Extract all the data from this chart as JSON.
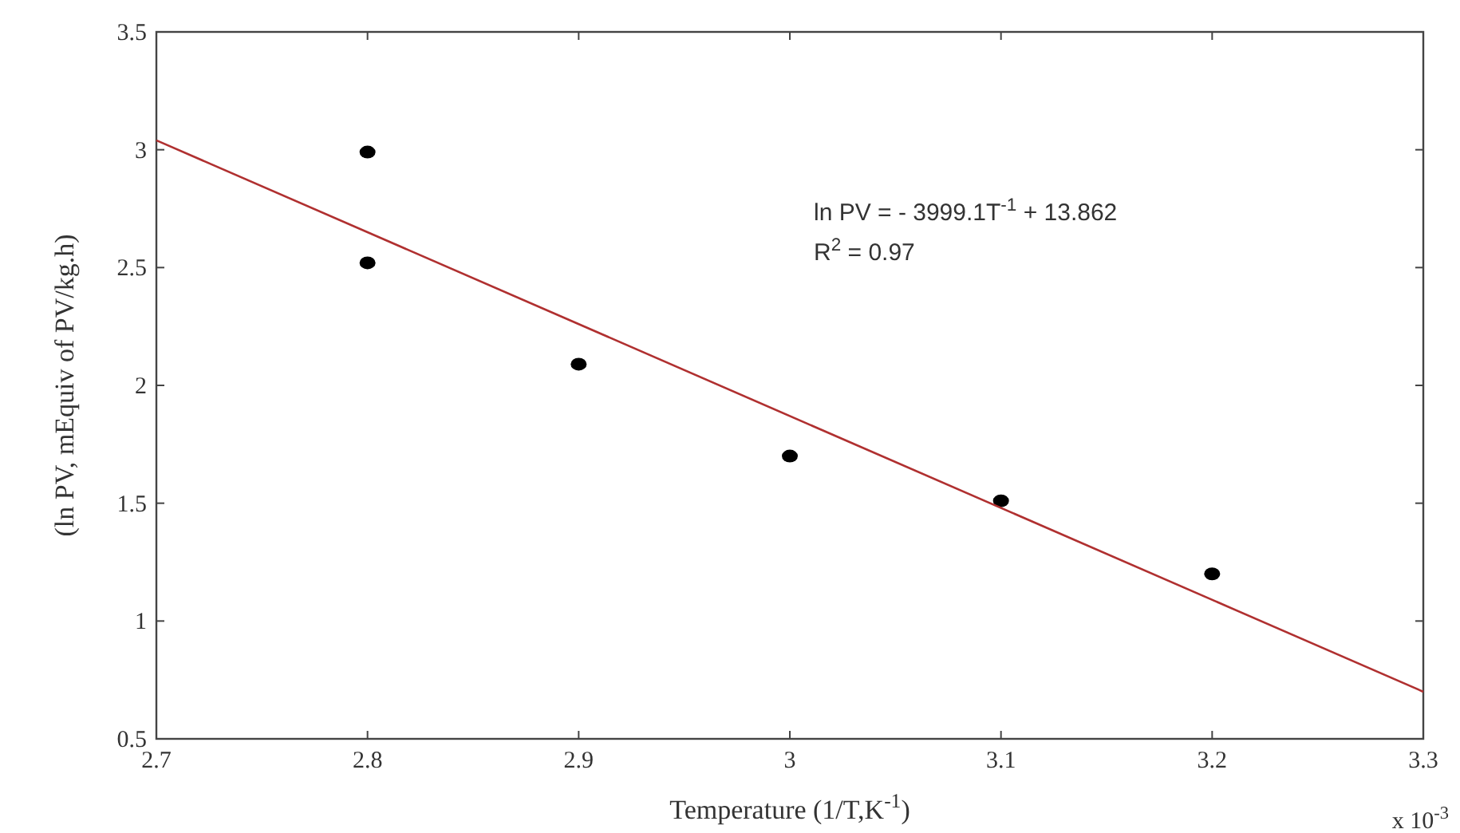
{
  "chart_data": {
    "type": "scatter",
    "xlabel": "Temperature (1/T,K$^{-1}$)",
    "ylabel": "(ln PV, mEquiv of PV/kg.h)",
    "x": [
      2.8,
      2.8,
      2.9,
      3.0,
      3.1,
      3.2
    ],
    "series": [
      {
        "color": "#000000",
        "marker": "circle",
        "values": [
          2.99,
          2.52,
          2.09,
          1.7,
          1.51,
          1.2
        ]
      },
      {
        "type": "line",
        "color": "#b03030",
        "marker": "none",
        "line_style": "solid",
        "x": [
          2.7,
          3.3
        ],
        "values": [
          3.04,
          0.7
        ]
      }
    ],
    "xlim": [
      2.7,
      3.3
    ],
    "xticks": [
      2.7,
      2.8,
      2.9,
      3,
      3.1,
      3.2,
      3.3
    ],
    "ylim": [
      0.5,
      3.5
    ],
    "yticks": [
      0.5,
      1,
      1.5,
      2,
      2.5,
      3,
      3.5
    ],
    "grid": false,
    "annotations": [
      "ln PV = - 3999.1T$^{-1}$ + 13.862",
      "R$^{2}$ = 0.97",
      "x 10$^{-3}$"
    ]
  }
}
